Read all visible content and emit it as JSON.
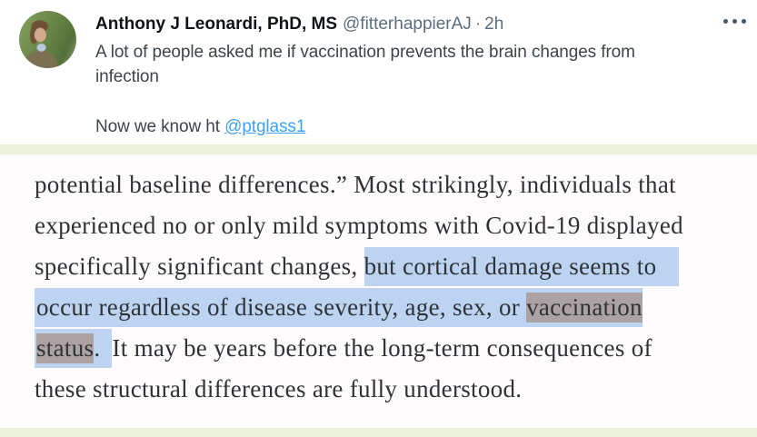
{
  "tweet": {
    "author": "Anthony J Leonardi, PhD, MS",
    "handle": "@fitterhappierAJ",
    "dot_separator": "·",
    "timestamp": "2h",
    "more_icon": "more-options-ellipsis",
    "body_lines": [
      "A lot of people asked me if vaccination prevents the brain changes from",
      "infection"
    ],
    "second_line_prefix": "Now we know ht ",
    "mention_link": "@ptglass1"
  },
  "quote": {
    "lines": [
      {
        "segments": [
          {
            "text": "potential baseline differences.” Most strikingly, individuals that",
            "style": "plain"
          }
        ]
      },
      {
        "segments": [
          {
            "text": "experienced no or only mild symptoms with Covid-19 displayed",
            "style": "plain"
          }
        ]
      },
      {
        "segments": [
          {
            "text": "specifically significant changes, ",
            "style": "plain"
          },
          {
            "text": "but cortical damage seems to",
            "style": "sel-extend"
          }
        ]
      },
      {
        "segments": [
          {
            "text": "occur regardless of disease severity, age, sex, or ",
            "style": "sel-start"
          },
          {
            "text": "vaccination",
            "style": "find"
          }
        ]
      },
      {
        "segments": [
          {
            "text": "status",
            "style": "find-start"
          },
          {
            "text": ". ",
            "style": "sel-tail"
          },
          {
            "text": "It may be years before the long-term consequences of",
            "style": "plain"
          }
        ]
      },
      {
        "segments": [
          {
            "text": "these structural differences are fully understood.",
            "style": "plain"
          }
        ]
      }
    ]
  },
  "colors": {
    "link_blue": "#3da1f0",
    "selection_highlight": "#bcd4f2",
    "find_highlight": "#aca2a4",
    "section_strip_green": "#e9f2d8",
    "name_black": "#0f1419",
    "handle_gray": "#5b6e7f",
    "quote_text": "#2f3337"
  }
}
